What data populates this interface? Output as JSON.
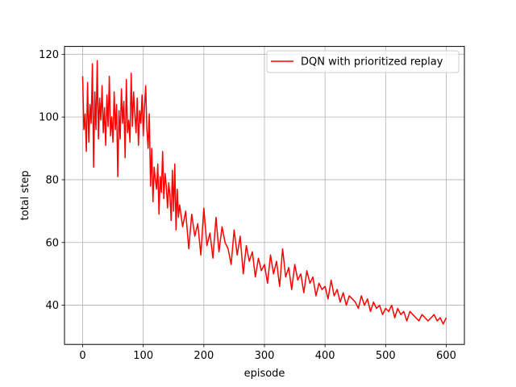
{
  "chart_data": {
    "type": "line",
    "title": "",
    "xlabel": "episode",
    "ylabel": "total step",
    "xlim": [
      -30,
      630
    ],
    "ylim": [
      27.5,
      122.5
    ],
    "xticks": [
      0,
      100,
      200,
      300,
      400,
      500,
      600
    ],
    "yticks": [
      40,
      60,
      80,
      100,
      120
    ],
    "grid": true,
    "legend_position": "top-right",
    "series": [
      {
        "name": "DQN with prioritized replay",
        "color": "#ff0000",
        "x": [
          0,
          2,
          4,
          6,
          8,
          10,
          12,
          14,
          16,
          18,
          20,
          22,
          24,
          26,
          28,
          30,
          32,
          34,
          36,
          38,
          40,
          42,
          44,
          46,
          48,
          50,
          52,
          54,
          56,
          58,
          60,
          62,
          64,
          66,
          68,
          70,
          72,
          74,
          76,
          78,
          80,
          82,
          84,
          86,
          88,
          90,
          92,
          94,
          96,
          98,
          100,
          102,
          104,
          106,
          108,
          110,
          112,
          114,
          116,
          118,
          120,
          122,
          124,
          126,
          128,
          130,
          132,
          134,
          136,
          138,
          140,
          142,
          144,
          146,
          148,
          150,
          152,
          154,
          156,
          158,
          160,
          165,
          170,
          175,
          180,
          185,
          190,
          195,
          200,
          205,
          210,
          215,
          220,
          225,
          230,
          235,
          240,
          245,
          250,
          255,
          260,
          265,
          270,
          275,
          280,
          285,
          290,
          295,
          300,
          305,
          310,
          315,
          320,
          325,
          330,
          335,
          340,
          345,
          350,
          355,
          360,
          365,
          370,
          375,
          380,
          385,
          390,
          395,
          400,
          405,
          410,
          415,
          420,
          425,
          430,
          435,
          440,
          445,
          450,
          455,
          460,
          465,
          470,
          475,
          480,
          485,
          490,
          495,
          500,
          505,
          510,
          515,
          520,
          525,
          530,
          535,
          540,
          545,
          550,
          555,
          560,
          565,
          570,
          575,
          580,
          585,
          590,
          595,
          600
        ],
        "y": [
          113,
          96,
          101,
          89,
          111,
          92,
          104,
          98,
          117,
          84,
          108,
          96,
          118,
          93,
          106,
          99,
          110,
          95,
          103,
          91,
          107,
          97,
          113,
          94,
          100,
          92,
          108,
          96,
          104,
          81,
          102,
          93,
          109,
          98,
          105,
          87,
          112,
          95,
          99,
          92,
          114,
          97,
          108,
          101,
          95,
          106,
          91,
          102,
          98,
          107,
          94,
          103,
          110,
          96,
          90,
          101,
          78,
          90,
          73,
          84,
          80,
          77,
          85,
          69,
          81,
          76,
          89,
          74,
          82,
          78,
          71,
          79,
          75,
          67,
          83,
          70,
          85,
          64,
          77,
          68,
          72,
          65,
          70,
          58,
          69,
          62,
          66,
          56,
          71,
          59,
          63,
          55,
          68,
          57,
          65,
          60,
          58,
          53,
          64,
          56,
          62,
          50,
          59,
          54,
          57,
          49,
          55,
          51,
          53,
          47,
          56,
          50,
          54,
          46,
          58,
          49,
          52,
          45,
          53,
          48,
          50,
          44,
          51,
          47,
          49,
          43,
          47,
          45,
          46,
          42,
          48,
          43,
          45,
          41,
          44,
          40,
          43,
          42,
          41,
          39,
          43,
          40,
          42,
          38,
          41,
          39,
          40,
          37,
          39,
          38,
          40,
          36,
          39,
          37,
          38,
          35,
          38,
          37,
          36,
          35,
          37,
          36,
          35,
          36,
          37,
          35,
          36,
          34,
          36
        ]
      }
    ]
  }
}
